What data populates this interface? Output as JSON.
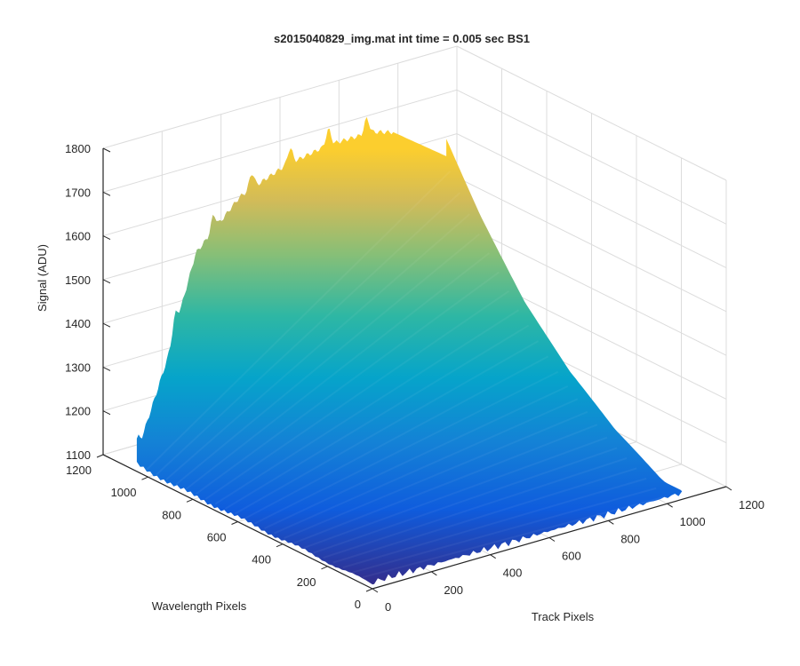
{
  "chart_data": {
    "type": "surface",
    "title": "s2015040829_img.mat int time = 0.005 sec   BS1",
    "xlabel": "Track Pixels",
    "ylabel": "Wavelength Pixels",
    "zlabel": "Signal (ADU)",
    "xlim": [
      0,
      1200
    ],
    "ylim": [
      0,
      1200
    ],
    "zlim": [
      1100,
      1800
    ],
    "xticks": [
      0,
      200,
      400,
      600,
      800,
      1000,
      1200
    ],
    "yticks": [
      0,
      200,
      400,
      600,
      800,
      1000,
      1200
    ],
    "zticks": [
      1100,
      1200,
      1300,
      1400,
      1500,
      1600,
      1700,
      1800
    ],
    "grid": true,
    "colormap": "parula",
    "surface_summary": {
      "track_range": [
        0,
        1050
      ],
      "wavelength_range": [
        0,
        1050
      ],
      "signal_min_approx": 1100,
      "signal_max_approx": 1740,
      "profile_along_track": [
        {
          "x": 0,
          "z": 1140
        },
        {
          "x": 100,
          "z": 1330
        },
        {
          "x": 200,
          "z": 1560
        },
        {
          "x": 350,
          "z": 1660
        },
        {
          "x": 500,
          "z": 1700
        },
        {
          "x": 650,
          "z": 1720
        },
        {
          "x": 800,
          "z": 1720
        },
        {
          "x": 900,
          "z": 1700
        }
      ],
      "profile_along_wavelength": [
        {
          "y": 1050,
          "z": 1700
        },
        {
          "y": 900,
          "z": 1560
        },
        {
          "y": 700,
          "z": 1400
        },
        {
          "y": 500,
          "z": 1280
        },
        {
          "y": 300,
          "z": 1190
        },
        {
          "y": 100,
          "z": 1130
        },
        {
          "y": 0,
          "z": 1110
        }
      ]
    }
  }
}
